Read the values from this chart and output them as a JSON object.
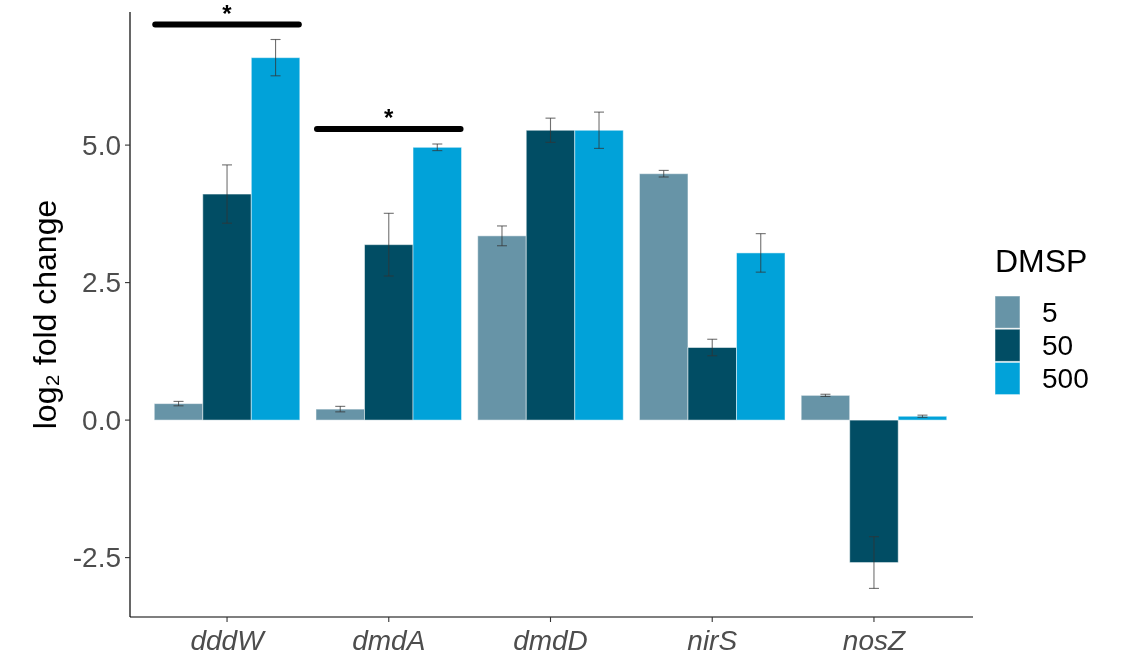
{
  "chart_data": {
    "type": "bar",
    "categories": [
      "dddW",
      "dmdA",
      "dmdD",
      "nirS",
      "nosZ"
    ],
    "series": [
      {
        "name": "5",
        "color": "#6794a7",
        "values": [
          0.3,
          0.2,
          3.35,
          4.48,
          0.45
        ],
        "errors": [
          0.04,
          0.05,
          0.18,
          0.06,
          0.02
        ]
      },
      {
        "name": "50",
        "color": "#014d64",
        "values": [
          4.11,
          3.19,
          5.27,
          1.32,
          -2.59
        ],
        "errors": [
          0.53,
          0.57,
          0.22,
          0.15,
          0.47
        ]
      },
      {
        "name": "500",
        "color": "#01a2d9",
        "values": [
          6.59,
          4.96,
          5.27,
          3.04,
          0.07
        ],
        "errors": [
          0.33,
          0.06,
          0.33,
          0.35,
          0.02
        ]
      }
    ],
    "ylabel": "log₂ fold change",
    "legend_title": "DMSP",
    "legend": "right",
    "ylim": [
      -3.58,
      7.42
    ],
    "yticks": [
      -2.5,
      {
        "value": 0,
        "label": "0.0"
      },
      2.5,
      {
        "value": 5,
        "label": "5.0"
      }
    ],
    "annotations": [
      "*",
      "*"
    ]
  }
}
